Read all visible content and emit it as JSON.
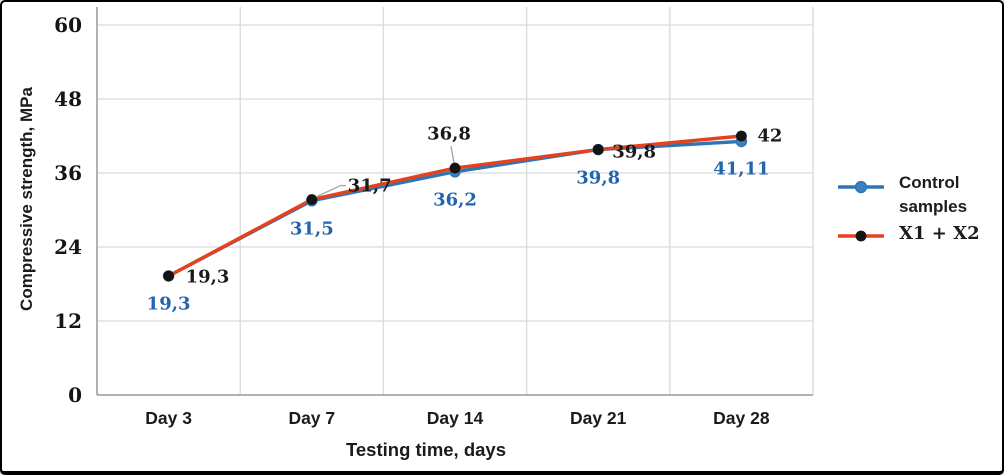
{
  "chart_data": {
    "type": "line",
    "title": "",
    "categories": [
      "Day 3",
      "Day 7",
      "Day 14",
      "Day 21",
      "Day 28"
    ],
    "xlabel": "Testing time, days",
    "ylabel": "Compressive strength, MPa",
    "ylim": [
      0,
      60
    ],
    "yticks": [
      0,
      12,
      24,
      36,
      48,
      60
    ],
    "grid": true,
    "legend_position": "right",
    "decimal_separator": ",",
    "series": [
      {
        "name": "Control samples",
        "color": "#2e75b6",
        "marker": "circle",
        "marker_color": "#3c80c0",
        "values": [
          19.3,
          31.5,
          36.2,
          39.8,
          41.11
        ],
        "data_labels": [
          "19,3",
          "31,5",
          "36,2",
          "39,8",
          "41,11"
        ],
        "label_color": "#2065ad"
      },
      {
        "name": "X1 + X2",
        "color": "#e7411c",
        "marker": "circle",
        "marker_color": "#141414",
        "values": [
          19.3,
          31.7,
          36.8,
          39.8,
          42
        ],
        "data_labels": [
          "19,3",
          "31,7",
          "36,8",
          "39,8",
          "42"
        ],
        "label_color": "#1a1a1a"
      }
    ]
  },
  "colors": {
    "background": "#ffffff",
    "border": "#000000",
    "grid": "#d9d9d9",
    "axis": "#999999",
    "leader_line": "#a8a8a8",
    "tick_label": "#151515"
  }
}
